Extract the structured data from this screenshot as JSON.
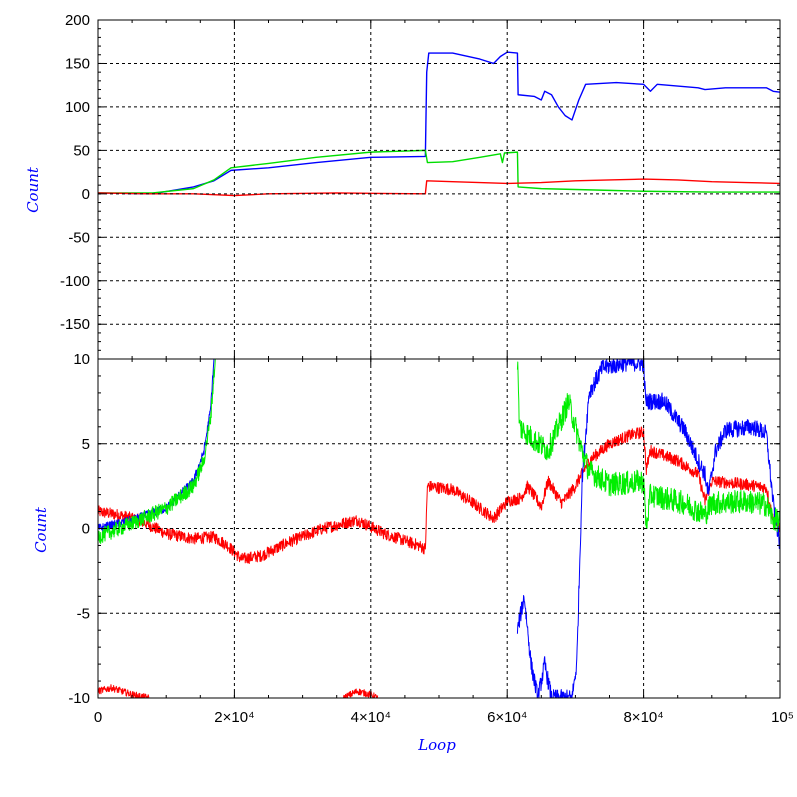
{
  "chart_data": [
    {
      "type": "line",
      "panel": "top",
      "ylabel": "Count",
      "xlim": [
        0,
        100000
      ],
      "ylim": [
        -190,
        200
      ],
      "grid": true,
      "yticks": [
        {
          "value": 200,
          "label": "200"
        },
        {
          "value": 150,
          "label": "150"
        },
        {
          "value": 100,
          "label": "100"
        },
        {
          "value": 50,
          "label": "50"
        },
        {
          "value": 0,
          "label": "0"
        },
        {
          "value": -50,
          "label": "-50"
        },
        {
          "value": -100,
          "label": "-100"
        },
        {
          "value": -150,
          "label": "-150"
        }
      ],
      "series": [
        {
          "color": "#0000ff",
          "points": [
            [
              0,
              1
            ],
            [
              8000,
              0
            ],
            [
              14000,
              8
            ],
            [
              17000,
              15
            ],
            [
              19500,
              27
            ],
            [
              25000,
              30
            ],
            [
              32000,
              36
            ],
            [
              40000,
              42
            ],
            [
              48000,
              43
            ],
            [
              48200,
              140
            ],
            [
              48500,
              162
            ],
            [
              52000,
              162
            ],
            [
              56000,
              155
            ],
            [
              58000,
              150
            ],
            [
              59000,
              158
            ],
            [
              60000,
              163
            ],
            [
              61500,
              162
            ],
            [
              61600,
              114
            ],
            [
              64000,
              112
            ],
            [
              65000,
              108
            ],
            [
              65500,
              118
            ],
            [
              66500,
              114
            ],
            [
              67500,
              100
            ],
            [
              68500,
              90
            ],
            [
              69500,
              85
            ],
            [
              70500,
              108
            ],
            [
              71500,
              126
            ],
            [
              76000,
              128
            ],
            [
              80000,
              126
            ],
            [
              81000,
              118
            ],
            [
              82000,
              126
            ],
            [
              88000,
              122
            ],
            [
              89000,
              120
            ],
            [
              92000,
              122
            ],
            [
              98000,
              122
            ],
            [
              99000,
              118
            ],
            [
              100000,
              117
            ]
          ]
        },
        {
          "color": "#00dd00",
          "points": [
            [
              0,
              1
            ],
            [
              8000,
              1
            ],
            [
              14000,
              6
            ],
            [
              17000,
              16
            ],
            [
              19500,
              30
            ],
            [
              25000,
              35
            ],
            [
              32000,
              42
            ],
            [
              40000,
              48
            ],
            [
              48000,
              50
            ],
            [
              48300,
              36
            ],
            [
              52000,
              37
            ],
            [
              56000,
              42
            ],
            [
              59000,
              46
            ],
            [
              59300,
              36
            ],
            [
              59600,
              47
            ],
            [
              61500,
              48
            ],
            [
              61600,
              8
            ],
            [
              65000,
              6
            ],
            [
              70000,
              5
            ],
            [
              75000,
              4
            ],
            [
              80000,
              3
            ],
            [
              90000,
              2
            ],
            [
              100000,
              2
            ]
          ]
        },
        {
          "color": "#ff0000",
          "points": [
            [
              0,
              1
            ],
            [
              8000,
              0
            ],
            [
              14000,
              0
            ],
            [
              20000,
              -2
            ],
            [
              25000,
              0
            ],
            [
              35000,
              1
            ],
            [
              48000,
              0
            ],
            [
              48200,
              15
            ],
            [
              52000,
              14
            ],
            [
              56000,
              13
            ],
            [
              60000,
              12
            ],
            [
              65000,
              13
            ],
            [
              70000,
              15
            ],
            [
              75000,
              16
            ],
            [
              80000,
              17
            ],
            [
              85000,
              16
            ],
            [
              90000,
              14
            ],
            [
              95000,
              13
            ],
            [
              100000,
              12
            ]
          ]
        }
      ]
    },
    {
      "type": "line",
      "panel": "bottom",
      "xlabel": "Loop",
      "ylabel": "Count",
      "xlim": [
        0,
        100000
      ],
      "ylim": [
        -10,
        10
      ],
      "grid": true,
      "xticks": [
        {
          "value": 0,
          "label": "0"
        },
        {
          "value": 20000,
          "label": "2×10⁴"
        },
        {
          "value": 40000,
          "label": "4×10⁴"
        },
        {
          "value": 60000,
          "label": "6×10⁴"
        },
        {
          "value": 80000,
          "label": "8×10⁴"
        },
        {
          "value": 100000,
          "label": "10⁵"
        }
      ],
      "yticks": [
        {
          "value": 10,
          "label": "10"
        },
        {
          "value": 5,
          "label": "5"
        },
        {
          "value": 0,
          "label": "0"
        },
        {
          "value": -5,
          "label": "-5"
        },
        {
          "value": -10,
          "label": "-10"
        }
      ],
      "series": [
        {
          "color": "#ff0000",
          "noise": 0.35,
          "points": [
            [
              0,
              1
            ],
            [
              3000,
              0.8
            ],
            [
              6000,
              0.5
            ],
            [
              10000,
              -0.3
            ],
            [
              14000,
              -0.6
            ],
            [
              17000,
              -0.5
            ],
            [
              19000,
              -1
            ],
            [
              21000,
              -1.8
            ],
            [
              24000,
              -1.6
            ],
            [
              28000,
              -0.8
            ],
            [
              33000,
              0
            ],
            [
              38000,
              0.5
            ],
            [
              42000,
              -0.3
            ],
            [
              47000,
              -1
            ],
            [
              48000,
              -1.2
            ],
            [
              48300,
              2.5
            ],
            [
              52000,
              2.3
            ],
            [
              55000,
              1.5
            ],
            [
              58000,
              0.6
            ],
            [
              60000,
              1.6
            ],
            [
              62000,
              1.8
            ],
            [
              63000,
              2.5
            ],
            [
              65000,
              1.3
            ],
            [
              66000,
              2.8
            ],
            [
              68000,
              1.5
            ],
            [
              70000,
              2.5
            ],
            [
              72000,
              4
            ],
            [
              75000,
              5
            ],
            [
              78000,
              5.5
            ],
            [
              80000,
              5.7
            ],
            [
              80400,
              3.5
            ],
            [
              81000,
              4.6
            ],
            [
              85000,
              4
            ],
            [
              88000,
              3.2
            ],
            [
              89000,
              1.6
            ],
            [
              90000,
              2.8
            ],
            [
              95000,
              2.6
            ],
            [
              98000,
              2.4
            ],
            [
              99000,
              0.5
            ],
            [
              100000,
              0
            ]
          ]
        },
        {
          "color": "#ff0000",
          "noise": 0.2,
          "points": [
            [
              0,
              -9.6
            ],
            [
              2000,
              -9.4
            ],
            [
              5000,
              -9.8
            ],
            [
              7500,
              -10
            ]
          ]
        },
        {
          "color": "#ff0000",
          "noise": 0.2,
          "points": [
            [
              36000,
              -10
            ],
            [
              38000,
              -9.6
            ],
            [
              40000,
              -9.8
            ],
            [
              41000,
              -10
            ]
          ]
        },
        {
          "color": "#0000ff",
          "noise": 0.25,
          "points": [
            [
              0,
              0
            ],
            [
              5000,
              0.5
            ],
            [
              10000,
              1.2
            ],
            [
              14000,
              2.8
            ],
            [
              15500,
              4.5
            ],
            [
              16500,
              7
            ],
            [
              17000,
              10
            ]
          ]
        },
        {
          "color": "#0000ff",
          "noise": 0.5,
          "points": [
            [
              61500,
              -6
            ],
            [
              62500,
              -4
            ],
            [
              63500,
              -8
            ],
            [
              64500,
              -10
            ],
            [
              65500,
              -8
            ],
            [
              66500,
              -10
            ],
            [
              69500,
              -10
            ],
            [
              70200,
              -8
            ],
            [
              71000,
              3
            ],
            [
              72000,
              8
            ],
            [
              74000,
              9.5
            ],
            [
              78000,
              9.8
            ],
            [
              80000,
              9.7
            ],
            [
              80300,
              7.5
            ],
            [
              83000,
              7.5
            ],
            [
              86000,
              5.8
            ],
            [
              88000,
              4
            ],
            [
              89000,
              3.2
            ],
            [
              89500,
              2
            ],
            [
              90500,
              4.5
            ],
            [
              92000,
              5.8
            ],
            [
              96000,
              6
            ],
            [
              98000,
              5.6
            ],
            [
              99000,
              1.5
            ],
            [
              100000,
              -1
            ]
          ]
        },
        {
          "color": "#00ee00",
          "noise": 0.45,
          "points": [
            [
              0,
              -0.5
            ],
            [
              5000,
              0.3
            ],
            [
              10000,
              1.2
            ],
            [
              14000,
              2.5
            ],
            [
              15500,
              4
            ],
            [
              16500,
              6.5
            ],
            [
              17200,
              10
            ]
          ]
        },
        {
          "color": "#00ee00",
          "noise": 0.7,
          "points": [
            [
              61500,
              10
            ],
            [
              61800,
              6
            ],
            [
              64000,
              5.2
            ],
            [
              66000,
              4.6
            ],
            [
              67500,
              6
            ],
            [
              69000,
              7.5
            ],
            [
              70000,
              6
            ],
            [
              71000,
              4.5
            ],
            [
              72000,
              3.4
            ],
            [
              75000,
              2.6
            ],
            [
              78000,
              2.7
            ],
            [
              80000,
              2.8
            ],
            [
              80400,
              0
            ],
            [
              81000,
              2
            ],
            [
              86000,
              1.5
            ],
            [
              89000,
              0.8
            ],
            [
              90000,
              1.5
            ],
            [
              95000,
              1.6
            ],
            [
              98000,
              1.4
            ],
            [
              99000,
              0.5
            ],
            [
              100000,
              0.5
            ]
          ]
        }
      ]
    }
  ]
}
